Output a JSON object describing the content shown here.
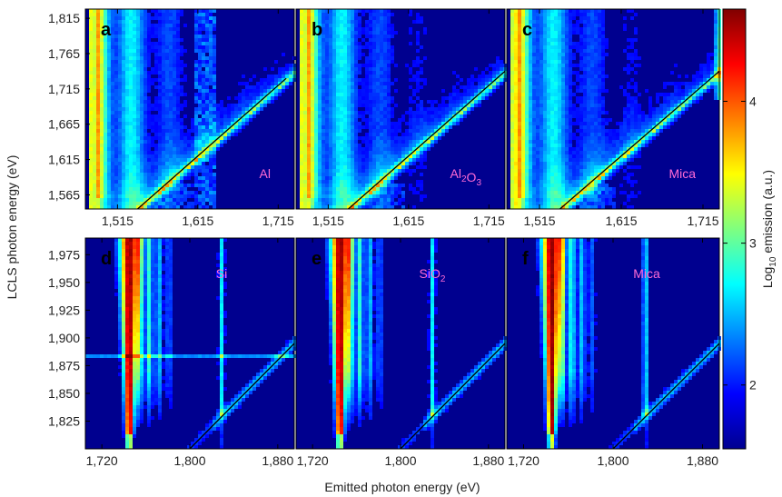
{
  "chart_data": {
    "type": "heatmap",
    "shared_ylabel": "LCLS photon energy (eV)",
    "shared_xlabel": "Emitted photon energy (eV)",
    "colorbar": {
      "label_prefix": "Log",
      "label_sub": "10",
      "label_suffix": " emission (a.u.)",
      "range": [
        1.55,
        4.65
      ],
      "ticks": [
        2,
        3,
        4
      ],
      "colormap": "jet"
    },
    "panels": [
      {
        "letter": "a",
        "material": "Al",
        "material_parts": [
          [
            "Al",
            ""
          ]
        ],
        "xlim": [
          1475,
          1735
        ],
        "ylim": [
          1545,
          1828
        ],
        "xticks": [
          1515,
          1615,
          1715
        ],
        "xtick_labels": [
          "1,515",
          "1,615",
          "1,715"
        ],
        "yticks": [
          1565,
          1615,
          1665,
          1715,
          1765,
          1815
        ],
        "ytick_labels": [
          "1,565",
          "1,615",
          "1,665",
          "1,715",
          "1,765",
          "1,815"
        ],
        "diagonal": [
          [
            1540,
            1545
          ],
          [
            1725,
            1730
          ]
        ]
      },
      {
        "letter": "b",
        "material": "Al2O3",
        "material_parts": [
          [
            "Al",
            "2"
          ],
          [
            "O",
            "3"
          ]
        ],
        "xlim": [
          1475,
          1735
        ],
        "ylim": [
          1545,
          1828
        ],
        "xticks": [
          1515,
          1615,
          1715
        ],
        "xtick_labels": [
          "1,515",
          "1,615",
          "1,715"
        ],
        "yticks": [],
        "ytick_labels": [],
        "diagonal": [
          [
            1540,
            1545
          ],
          [
            1735,
            1740
          ]
        ]
      },
      {
        "letter": "c",
        "material": "Mica",
        "material_parts": [
          [
            "Mica",
            ""
          ]
        ],
        "xlim": [
          1475,
          1735
        ],
        "ylim": [
          1545,
          1828
        ],
        "xticks": [
          1515,
          1615,
          1715
        ],
        "xtick_labels": [
          "1,515",
          "1,615",
          "1,715"
        ],
        "yticks": [],
        "ytick_labels": [],
        "diagonal": [
          [
            1540,
            1545
          ],
          [
            1735,
            1740
          ]
        ]
      },
      {
        "letter": "d",
        "material": "Si",
        "material_parts": [
          [
            "Si",
            ""
          ]
        ],
        "xlim": [
          1705,
          1895
        ],
        "ylim": [
          1800,
          1990
        ],
        "xticks": [
          1720,
          1800,
          1880
        ],
        "xtick_labels": [
          "1,720",
          "1,800",
          "1,880"
        ],
        "yticks": [
          1825,
          1850,
          1875,
          1900,
          1925,
          1950,
          1975
        ],
        "ytick_labels": [
          "1,825",
          "1,850",
          "1,875",
          "1,900",
          "1,925",
          "1,950",
          "1,975"
        ],
        "diagonal": [
          [
            1800,
            1800
          ],
          [
            1895,
            1895
          ]
        ]
      },
      {
        "letter": "e",
        "material": "SiO2",
        "material_parts": [
          [
            "SiO",
            "2"
          ]
        ],
        "xlim": [
          1705,
          1895
        ],
        "ylim": [
          1800,
          1990
        ],
        "xticks": [
          1720,
          1800,
          1880
        ],
        "xtick_labels": [
          "1,720",
          "1,800",
          "1,880"
        ],
        "yticks": [],
        "ytick_labels": [],
        "diagonal": [
          [
            1800,
            1800
          ],
          [
            1895,
            1895
          ]
        ]
      },
      {
        "letter": "f",
        "material": "Mica",
        "material_parts": [
          [
            "Mica",
            ""
          ]
        ],
        "xlim": [
          1705,
          1895
        ],
        "ylim": [
          1800,
          1990
        ],
        "xticks": [
          1720,
          1800,
          1880
        ],
        "xtick_labels": [
          "1,720",
          "1,800",
          "1,880"
        ],
        "yticks": [],
        "ytick_labels": [],
        "diagonal": [
          [
            1800,
            1800
          ],
          [
            1895,
            1895
          ]
        ]
      }
    ],
    "colors": {
      "background_level": "#00008f",
      "diagonal": "#000000",
      "material_label": "#ff6ad5"
    }
  }
}
